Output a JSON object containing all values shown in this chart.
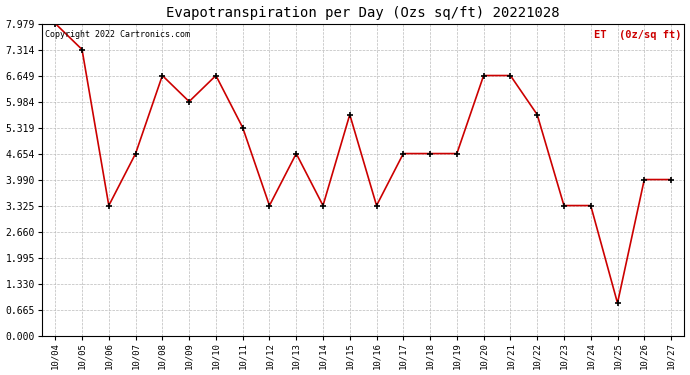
{
  "title": "Evapotranspiration per Day (Ozs sq/ft) 20221028",
  "legend_label": "ET  (0z/sq ft)",
  "copyright_text": "Copyright 2022 Cartronics.com",
  "x_labels": [
    "10/04",
    "10/05",
    "10/06",
    "10/07",
    "10/08",
    "10/09",
    "10/10",
    "10/11",
    "10/12",
    "10/13",
    "10/14",
    "10/15",
    "10/16",
    "10/17",
    "10/18",
    "10/19",
    "10/20",
    "10/21",
    "10/22",
    "10/23",
    "10/24",
    "10/25",
    "10/26",
    "10/27"
  ],
  "y_values": [
    7.979,
    7.314,
    3.325,
    4.654,
    6.649,
    5.984,
    6.649,
    5.319,
    3.325,
    4.654,
    3.325,
    5.65,
    3.325,
    4.654,
    4.654,
    4.654,
    6.649,
    6.649,
    5.65,
    3.325,
    3.325,
    0.832,
    3.99,
    3.99
  ],
  "line_color": "#cc0000",
  "marker_color": "#000000",
  "background_color": "#ffffff",
  "grid_color": "#bbbbbb",
  "title_color": "#000000",
  "legend_color": "#cc0000",
  "copyright_color": "#000000",
  "ylim": [
    0.0,
    7.979
  ],
  "yticks": [
    0.0,
    0.665,
    1.33,
    1.995,
    2.66,
    3.325,
    3.99,
    4.654,
    5.319,
    5.984,
    6.649,
    7.314,
    7.979
  ]
}
